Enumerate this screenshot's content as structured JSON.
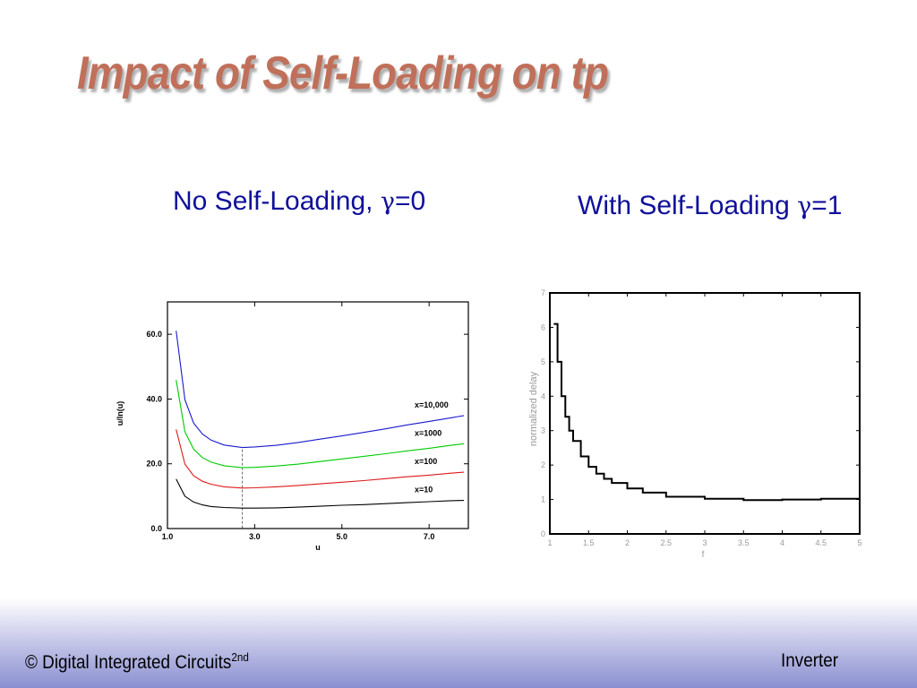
{
  "slide": {
    "title": "Impact of Self-Loading on tp",
    "subtitle_left": {
      "text": "No Self-Loading, ",
      "symbol": "γ",
      "value": "=0"
    },
    "subtitle_right": {
      "text": "With Self-Loading ",
      "symbol": "γ",
      "value": "=1"
    }
  },
  "footer": {
    "left": "© Digital Integrated Circuits",
    "left_sup": "2nd",
    "right": "Inverter"
  },
  "colors": {
    "title": "#c0705a",
    "subtitle": "#10109a",
    "series_x10000": "#1a1acc",
    "series_x1000": "#00cc00",
    "series_x100": "#dd1a1a",
    "series_x10": "#000000"
  },
  "chart_data": [
    {
      "type": "line",
      "title": "",
      "xlabel": "u",
      "ylabel": "u/ln(u)",
      "xlim": [
        1.0,
        7.9
      ],
      "ylim": [
        0.0,
        70.0
      ],
      "xticks": [
        "1.0",
        "3.0",
        "5.0",
        "7.0"
      ],
      "yticks": [
        "0.0",
        "20.0",
        "40.0",
        "60.0"
      ],
      "grid": false,
      "optimum_marker_x": 2.718,
      "x": [
        1.2,
        1.4,
        1.6,
        1.8,
        2.0,
        2.3,
        2.718,
        3.0,
        3.5,
        4.0,
        4.5,
        5.0,
        5.5,
        6.0,
        6.5,
        7.0,
        7.5,
        7.8
      ],
      "series": [
        {
          "name": "x=10,000",
          "values": [
            61.1,
            39.8,
            32.6,
            29.2,
            27.3,
            25.8,
            25.0,
            25.2,
            25.7,
            26.6,
            27.6,
            28.6,
            29.7,
            30.8,
            32.0,
            33.1,
            34.2,
            34.9
          ]
        },
        {
          "name": "x=1000",
          "values": [
            45.9,
            29.9,
            24.5,
            21.9,
            20.5,
            19.4,
            18.8,
            18.9,
            19.3,
            19.9,
            20.7,
            21.5,
            22.3,
            23.1,
            24.0,
            24.8,
            25.7,
            26.2
          ]
        },
        {
          "name": "x=100",
          "values": [
            30.6,
            19.9,
            16.3,
            14.6,
            13.7,
            12.9,
            12.5,
            12.6,
            12.9,
            13.3,
            13.8,
            14.3,
            14.8,
            15.4,
            16.0,
            16.5,
            17.1,
            17.4
          ]
        },
        {
          "name": "x=10",
          "values": [
            15.3,
            10.0,
            8.2,
            7.3,
            6.8,
            6.5,
            6.3,
            6.3,
            6.4,
            6.6,
            6.9,
            7.2,
            7.4,
            7.7,
            8.0,
            8.3,
            8.6,
            8.7
          ]
        }
      ]
    },
    {
      "type": "line",
      "title": "",
      "xlabel": "f",
      "ylabel": "normalized delay",
      "xlim": [
        1,
        5
      ],
      "ylim": [
        0,
        7
      ],
      "xticks": [
        "1",
        "1.5",
        "2",
        "2.5",
        "3",
        "3.5",
        "4",
        "4.5",
        "5"
      ],
      "yticks": [
        "0",
        "1",
        "2",
        "3",
        "4",
        "5",
        "6",
        "7"
      ],
      "grid": false,
      "x": [
        1.05,
        1.1,
        1.15,
        1.2,
        1.25,
        1.3,
        1.4,
        1.5,
        1.6,
        1.7,
        1.8,
        2.0,
        2.2,
        2.5,
        3.0,
        3.5,
        4.0,
        4.5,
        5.0
      ],
      "series": [
        {
          "values": [
            6.1,
            5.0,
            4.0,
            3.4,
            3.0,
            2.7,
            2.25,
            1.95,
            1.75,
            1.6,
            1.48,
            1.32,
            1.2,
            1.08,
            1.02,
            0.98,
            1.0,
            1.02,
            1.02
          ]
        }
      ]
    }
  ]
}
